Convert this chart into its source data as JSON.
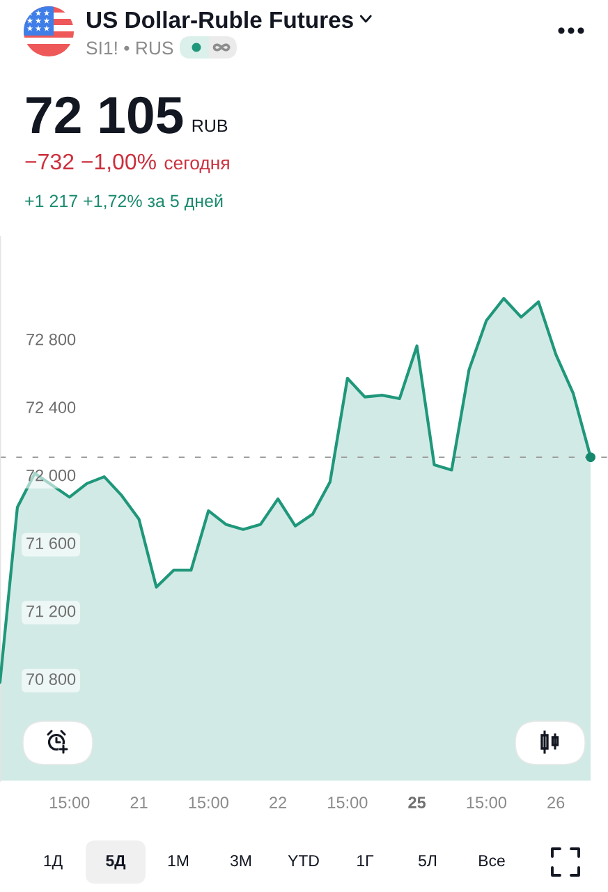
{
  "chart_data": {
    "type": "area",
    "title": "US Dollar-Ruble Futures",
    "subtitle": "SI1! • RUS",
    "categories": [
      null,
      null,
      null,
      null,
      "15:00",
      null,
      null,
      null,
      "21",
      null,
      null,
      null,
      "15:00",
      null,
      null,
      null,
      "22",
      null,
      null,
      null,
      "15:00",
      null,
      null,
      null,
      "25",
      null,
      null,
      null,
      "15:00",
      null,
      null,
      null,
      "26",
      null,
      null
    ],
    "series": [
      {
        "color": "#1f977b",
        "values": [
          70780,
          71810,
          72010,
          71940,
          71870,
          71950,
          71990,
          71880,
          71740,
          71340,
          71440,
          71440,
          71790,
          71710,
          71680,
          71710,
          71860,
          71700,
          71770,
          71960,
          72570,
          72460,
          72470,
          72450,
          72760,
          72060,
          72030,
          72620,
          72910,
          73040,
          72930,
          73020,
          72710,
          72480,
          72105
        ]
      },
      {
        "type": "scatter",
        "marker": "circle",
        "color": "#15876c",
        "values": [
          null,
          null,
          null,
          null,
          null,
          null,
          null,
          null,
          null,
          null,
          null,
          null,
          null,
          null,
          null,
          null,
          null,
          null,
          null,
          null,
          null,
          null,
          null,
          null,
          null,
          null,
          null,
          null,
          null,
          null,
          null,
          null,
          null,
          null,
          72105
        ]
      }
    ],
    "ylim": [
      70200,
      73400
    ],
    "yticks": [
      {
        "value": 70800,
        "label": "70 800"
      },
      {
        "value": 71200,
        "label": "71 200"
      },
      {
        "value": 71600,
        "label": "71 600"
      },
      {
        "value": 72000,
        "label": "72 000"
      },
      {
        "value": 72400,
        "label": "72 400"
      },
      {
        "value": 72800,
        "label": "72 800"
      }
    ],
    "ref_lines": [
      {
        "axis": "y",
        "value": 72105,
        "line_style": "dashed",
        "color": "#9a9a9a"
      }
    ],
    "annotations": [
      "72 105",
      "RUB",
      "−732 −1,00%",
      "сегодня",
      "+1 217 +1,72% за 5 дней",
      "1Д",
      "5Д",
      "1М",
      "3М",
      "YTD",
      "1Г",
      "5Л",
      "Все"
    ]
  }
}
